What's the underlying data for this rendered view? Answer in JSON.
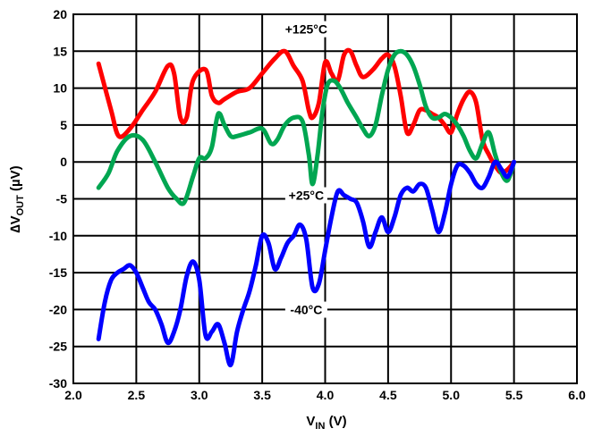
{
  "chart_data": {
    "type": "line",
    "xlim": [
      2.0,
      6.0
    ],
    "ylim": [
      -30,
      20
    ],
    "x_ticks": [
      "2.0",
      "2.5",
      "3.0",
      "3.5",
      "4.0",
      "4.5",
      "5.0",
      "5.5",
      "6.0"
    ],
    "y_ticks": [
      "20",
      "15",
      "10",
      "5",
      "0",
      "-5",
      "-10",
      "-15",
      "-20",
      "-25",
      "-30"
    ],
    "xlabel_main": "V",
    "xlabel_sub": "IN",
    "xlabel_unit": " (V)",
    "ylabel_prefix": "∆V",
    "ylabel_sub": "OUT",
    "ylabel_unit": " (µV)",
    "grid": true,
    "series": [
      {
        "name": "+125°C",
        "color": "#ff0000",
        "x": [
          2.2,
          2.3,
          2.36,
          2.45,
          2.55,
          2.65,
          2.75,
          2.8,
          2.85,
          2.9,
          2.95,
          3.05,
          3.1,
          3.15,
          3.2,
          3.3,
          3.4,
          3.5,
          3.6,
          3.68,
          3.75,
          3.82,
          3.87,
          3.9,
          3.95,
          4.0,
          4.05,
          4.1,
          4.15,
          4.2,
          4.25,
          4.3,
          4.38,
          4.45,
          4.5,
          4.55,
          4.6,
          4.65,
          4.7,
          4.75,
          4.8,
          4.85,
          4.9,
          4.95,
          5.0,
          5.05,
          5.1,
          5.15,
          5.2,
          5.25,
          5.3,
          5.35,
          5.4,
          5.45,
          5.5
        ],
        "y": [
          13.3,
          7,
          3.5,
          4.5,
          7,
          9.5,
          13,
          12,
          6,
          6,
          11,
          12.5,
          9,
          8,
          8.5,
          9.5,
          10,
          12,
          14,
          15,
          13,
          11,
          7,
          6,
          8,
          13.5,
          12,
          11,
          14.5,
          15,
          13,
          11.5,
          12.5,
          14,
          14.5,
          13,
          9,
          4,
          5,
          7,
          7,
          6.5,
          6,
          5,
          4,
          6.5,
          8.5,
          9.5,
          8,
          3,
          1,
          -0.5,
          -1.5,
          -1,
          0
        ]
      },
      {
        "name": "+25°C",
        "color": "#00a651",
        "x": [
          2.2,
          2.28,
          2.35,
          2.45,
          2.55,
          2.65,
          2.75,
          2.82,
          2.88,
          2.95,
          3.0,
          3.05,
          3.1,
          3.15,
          3.2,
          3.25,
          3.3,
          3.4,
          3.5,
          3.57,
          3.62,
          3.68,
          3.75,
          3.82,
          3.87,
          3.9,
          3.94,
          3.98,
          4.02,
          4.07,
          4.12,
          4.18,
          4.25,
          4.3,
          4.35,
          4.4,
          4.45,
          4.5,
          4.55,
          4.6,
          4.65,
          4.7,
          4.75,
          4.8,
          4.85,
          4.9,
          4.95,
          5.0,
          5.05,
          5.1,
          5.15,
          5.2,
          5.25,
          5.3,
          5.35,
          5.4,
          5.45,
          5.5
        ],
        "y": [
          -3.5,
          -1.5,
          1.5,
          3.5,
          3,
          0,
          -3.5,
          -5,
          -5.5,
          -2,
          0.5,
          0.5,
          2,
          6.5,
          5,
          3.5,
          3.5,
          4,
          4.5,
          2.5,
          3,
          5,
          6,
          5.5,
          1,
          -3,
          1,
          7,
          10.5,
          11,
          10,
          8,
          6,
          4.5,
          3.5,
          5,
          9,
          12.5,
          14.5,
          15,
          14.5,
          13,
          10.5,
          7.5,
          6,
          6,
          6.5,
          6,
          5,
          3.5,
          1.5,
          0.5,
          2.5,
          4,
          1,
          -1.5,
          -2.5,
          0
        ]
      },
      {
        "name": "-40°C",
        "color": "#0000ff",
        "x": [
          2.2,
          2.25,
          2.3,
          2.35,
          2.4,
          2.45,
          2.5,
          2.55,
          2.6,
          2.65,
          2.7,
          2.75,
          2.8,
          2.85,
          2.9,
          2.95,
          3.0,
          3.05,
          3.1,
          3.15,
          3.2,
          3.25,
          3.3,
          3.35,
          3.4,
          3.45,
          3.5,
          3.55,
          3.6,
          3.65,
          3.7,
          3.75,
          3.8,
          3.85,
          3.9,
          3.95,
          4.0,
          4.05,
          4.1,
          4.15,
          4.2,
          4.25,
          4.3,
          4.35,
          4.4,
          4.45,
          4.5,
          4.55,
          4.6,
          4.65,
          4.7,
          4.75,
          4.8,
          4.85,
          4.9,
          4.95,
          5.0,
          5.05,
          5.1,
          5.15,
          5.2,
          5.25,
          5.3,
          5.35,
          5.4,
          5.45,
          5.5
        ],
        "y": [
          -24,
          -19,
          -16,
          -15,
          -14.5,
          -14,
          -15,
          -17,
          -19,
          -20,
          -22,
          -24.5,
          -23,
          -20,
          -15.5,
          -13.5,
          -16,
          -23.5,
          -23,
          -22,
          -24.5,
          -27.5,
          -23,
          -20,
          -17.5,
          -14,
          -10,
          -11,
          -14.5,
          -13,
          -11,
          -10,
          -8.5,
          -10.5,
          -17,
          -16.5,
          -12,
          -7.5,
          -4,
          -4.5,
          -5,
          -5.5,
          -8,
          -11.5,
          -9.5,
          -7.5,
          -9.5,
          -7.5,
          -4.5,
          -3.5,
          -4,
          -3,
          -3.5,
          -6.5,
          -9.5,
          -7,
          -3,
          -0.5,
          -0.5,
          -1.5,
          -3,
          -3.5,
          -2,
          0,
          -1,
          -2,
          0
        ]
      }
    ],
    "annotations": [
      {
        "text": "+125°C",
        "x": 3.85,
        "y": 17.5
      },
      {
        "text": "+25°C",
        "x": 3.85,
        "y": -5
      },
      {
        "text": "-40°C",
        "x": 3.85,
        "y": -20.5
      }
    ]
  }
}
